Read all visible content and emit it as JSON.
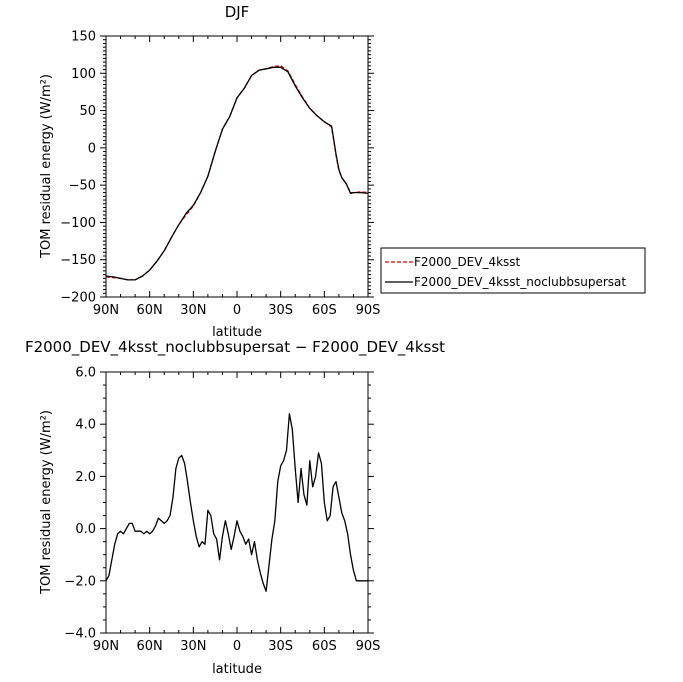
{
  "chart_data": [
    {
      "type": "line",
      "title": "DJF",
      "xlabel": "latitude",
      "ylabel": "TOM residual energy (W/m²)",
      "xlim": [
        90,
        -90
      ],
      "ylim": [
        -200,
        150
      ],
      "x_ticks": [
        90,
        60,
        30,
        0,
        -30,
        -60,
        -90
      ],
      "x_tick_labels": [
        "90N",
        "60N",
        "30N",
        "0",
        "30S",
        "60S",
        "90S"
      ],
      "y_ticks": [
        -200,
        -150,
        -100,
        -50,
        0,
        50,
        100,
        150
      ],
      "y_tick_labels": [
        "−200",
        "−150",
        "−100",
        "−50",
        "0",
        "50",
        "100",
        "150"
      ],
      "legend": {
        "placement": "right-outside"
      },
      "x": [
        90,
        85,
        80,
        75,
        70,
        65,
        60,
        55,
        50,
        45,
        40,
        35,
        30,
        25,
        20,
        15,
        10,
        5,
        0,
        -5,
        -10,
        -15,
        -20,
        -25,
        -30,
        -35,
        -40,
        -45,
        -50,
        -55,
        -60,
        -65,
        -68,
        -70,
        -72,
        -75,
        -78,
        -80,
        -85,
        -90
      ],
      "series": [
        {
          "name": "F2000_DEV_4ksst",
          "color": "#dd0000",
          "dash": true,
          "values": [
            -173,
            -174,
            -175,
            -177,
            -177,
            -172,
            -164,
            -152,
            -138,
            -120,
            -103,
            -90,
            -78,
            -60,
            -38,
            -5,
            25,
            42,
            67,
            80,
            97,
            104,
            106,
            109,
            110,
            103,
            85,
            68,
            53,
            43,
            35,
            28,
            -10,
            -30,
            -40,
            -48,
            -60,
            -60,
            -59,
            -60
          ]
        },
        {
          "name": "F2000_DEV_4ksst_noclubbsupersat",
          "color": "#000000",
          "dash": false,
          "values": [
            -172,
            -173,
            -175,
            -177,
            -177,
            -172,
            -164,
            -152,
            -138,
            -120,
            -103,
            -88,
            -77,
            -60,
            -38,
            -5,
            25,
            42,
            67,
            80,
            97,
            104,
            106,
            108,
            108,
            102,
            83,
            67,
            53,
            43,
            35,
            29,
            -8,
            -29,
            -40,
            -48,
            -61,
            -60,
            -60,
            -61
          ]
        }
      ]
    },
    {
      "type": "line",
      "title": "F2000_DEV_4ksst_noclubbsupersat − F2000_DEV_4ksst",
      "xlabel": "latitude",
      "ylabel": "TOM residual energy (W/m²)",
      "xlim": [
        90,
        -90
      ],
      "ylim": [
        -4,
        6
      ],
      "x_ticks": [
        90,
        60,
        30,
        0,
        -30,
        -60,
        -90
      ],
      "x_tick_labels": [
        "90N",
        "60N",
        "30N",
        "0",
        "30S",
        "60S",
        "90S"
      ],
      "y_ticks": [
        -4,
        -2,
        0,
        2,
        4,
        6
      ],
      "y_tick_labels": [
        "−4.0",
        "−2.0",
        "0.0",
        "2.0",
        "4.0",
        "6.0"
      ],
      "x": [
        90,
        88,
        86,
        84,
        82,
        80,
        78,
        76,
        74,
        72,
        70,
        68,
        66,
        64,
        62,
        60,
        58,
        56,
        54,
        52,
        50,
        48,
        46,
        44,
        42,
        40,
        38,
        36,
        34,
        32,
        30,
        28,
        26,
        24,
        22,
        20,
        18,
        16,
        14,
        12,
        10,
        8,
        6,
        4,
        2,
        0,
        -2,
        -4,
        -6,
        -8,
        -10,
        -12,
        -14,
        -16,
        -18,
        -20,
        -22,
        -24,
        -26,
        -28,
        -30,
        -32,
        -34,
        -36,
        -38,
        -40,
        -42,
        -44,
        -46,
        -48,
        -50,
        -52,
        -54,
        -56,
        -58,
        -60,
        -62,
        -64,
        -66,
        -68,
        -70,
        -72,
        -74,
        -76,
        -78,
        -80,
        -82,
        -84,
        -86,
        -88,
        -90
      ],
      "series": [
        {
          "name": "",
          "color": "#000000",
          "dash": false,
          "values": [
            -2.0,
            -1.8,
            -1.2,
            -0.6,
            -0.2,
            -0.1,
            -0.2,
            0.0,
            0.2,
            0.2,
            -0.1,
            -0.1,
            -0.1,
            -0.2,
            -0.1,
            -0.2,
            -0.1,
            0.1,
            0.4,
            0.3,
            0.2,
            0.3,
            0.5,
            1.2,
            2.3,
            2.7,
            2.8,
            2.5,
            1.8,
            1.0,
            0.3,
            -0.3,
            -0.7,
            -0.5,
            -0.6,
            0.7,
            0.5,
            -0.2,
            -0.4,
            -1.2,
            -0.3,
            0.3,
            -0.2,
            -0.8,
            -0.3,
            0.3,
            -0.1,
            -0.3,
            -0.6,
            -0.4,
            -1.0,
            -0.5,
            -1.2,
            -1.7,
            -2.1,
            -2.4,
            -1.4,
            -0.4,
            0.3,
            1.8,
            2.4,
            2.6,
            3.0,
            4.4,
            3.8,
            2.3,
            1.0,
            2.3,
            1.3,
            0.9,
            2.6,
            1.6,
            2.0,
            2.9,
            2.5,
            1.0,
            0.3,
            0.5,
            1.6,
            1.8,
            1.2,
            0.6,
            0.3,
            -0.2,
            -1.0,
            -1.6,
            -2.0,
            -2.0,
            -2.0,
            -2.0,
            -2.0
          ]
        }
      ]
    }
  ]
}
